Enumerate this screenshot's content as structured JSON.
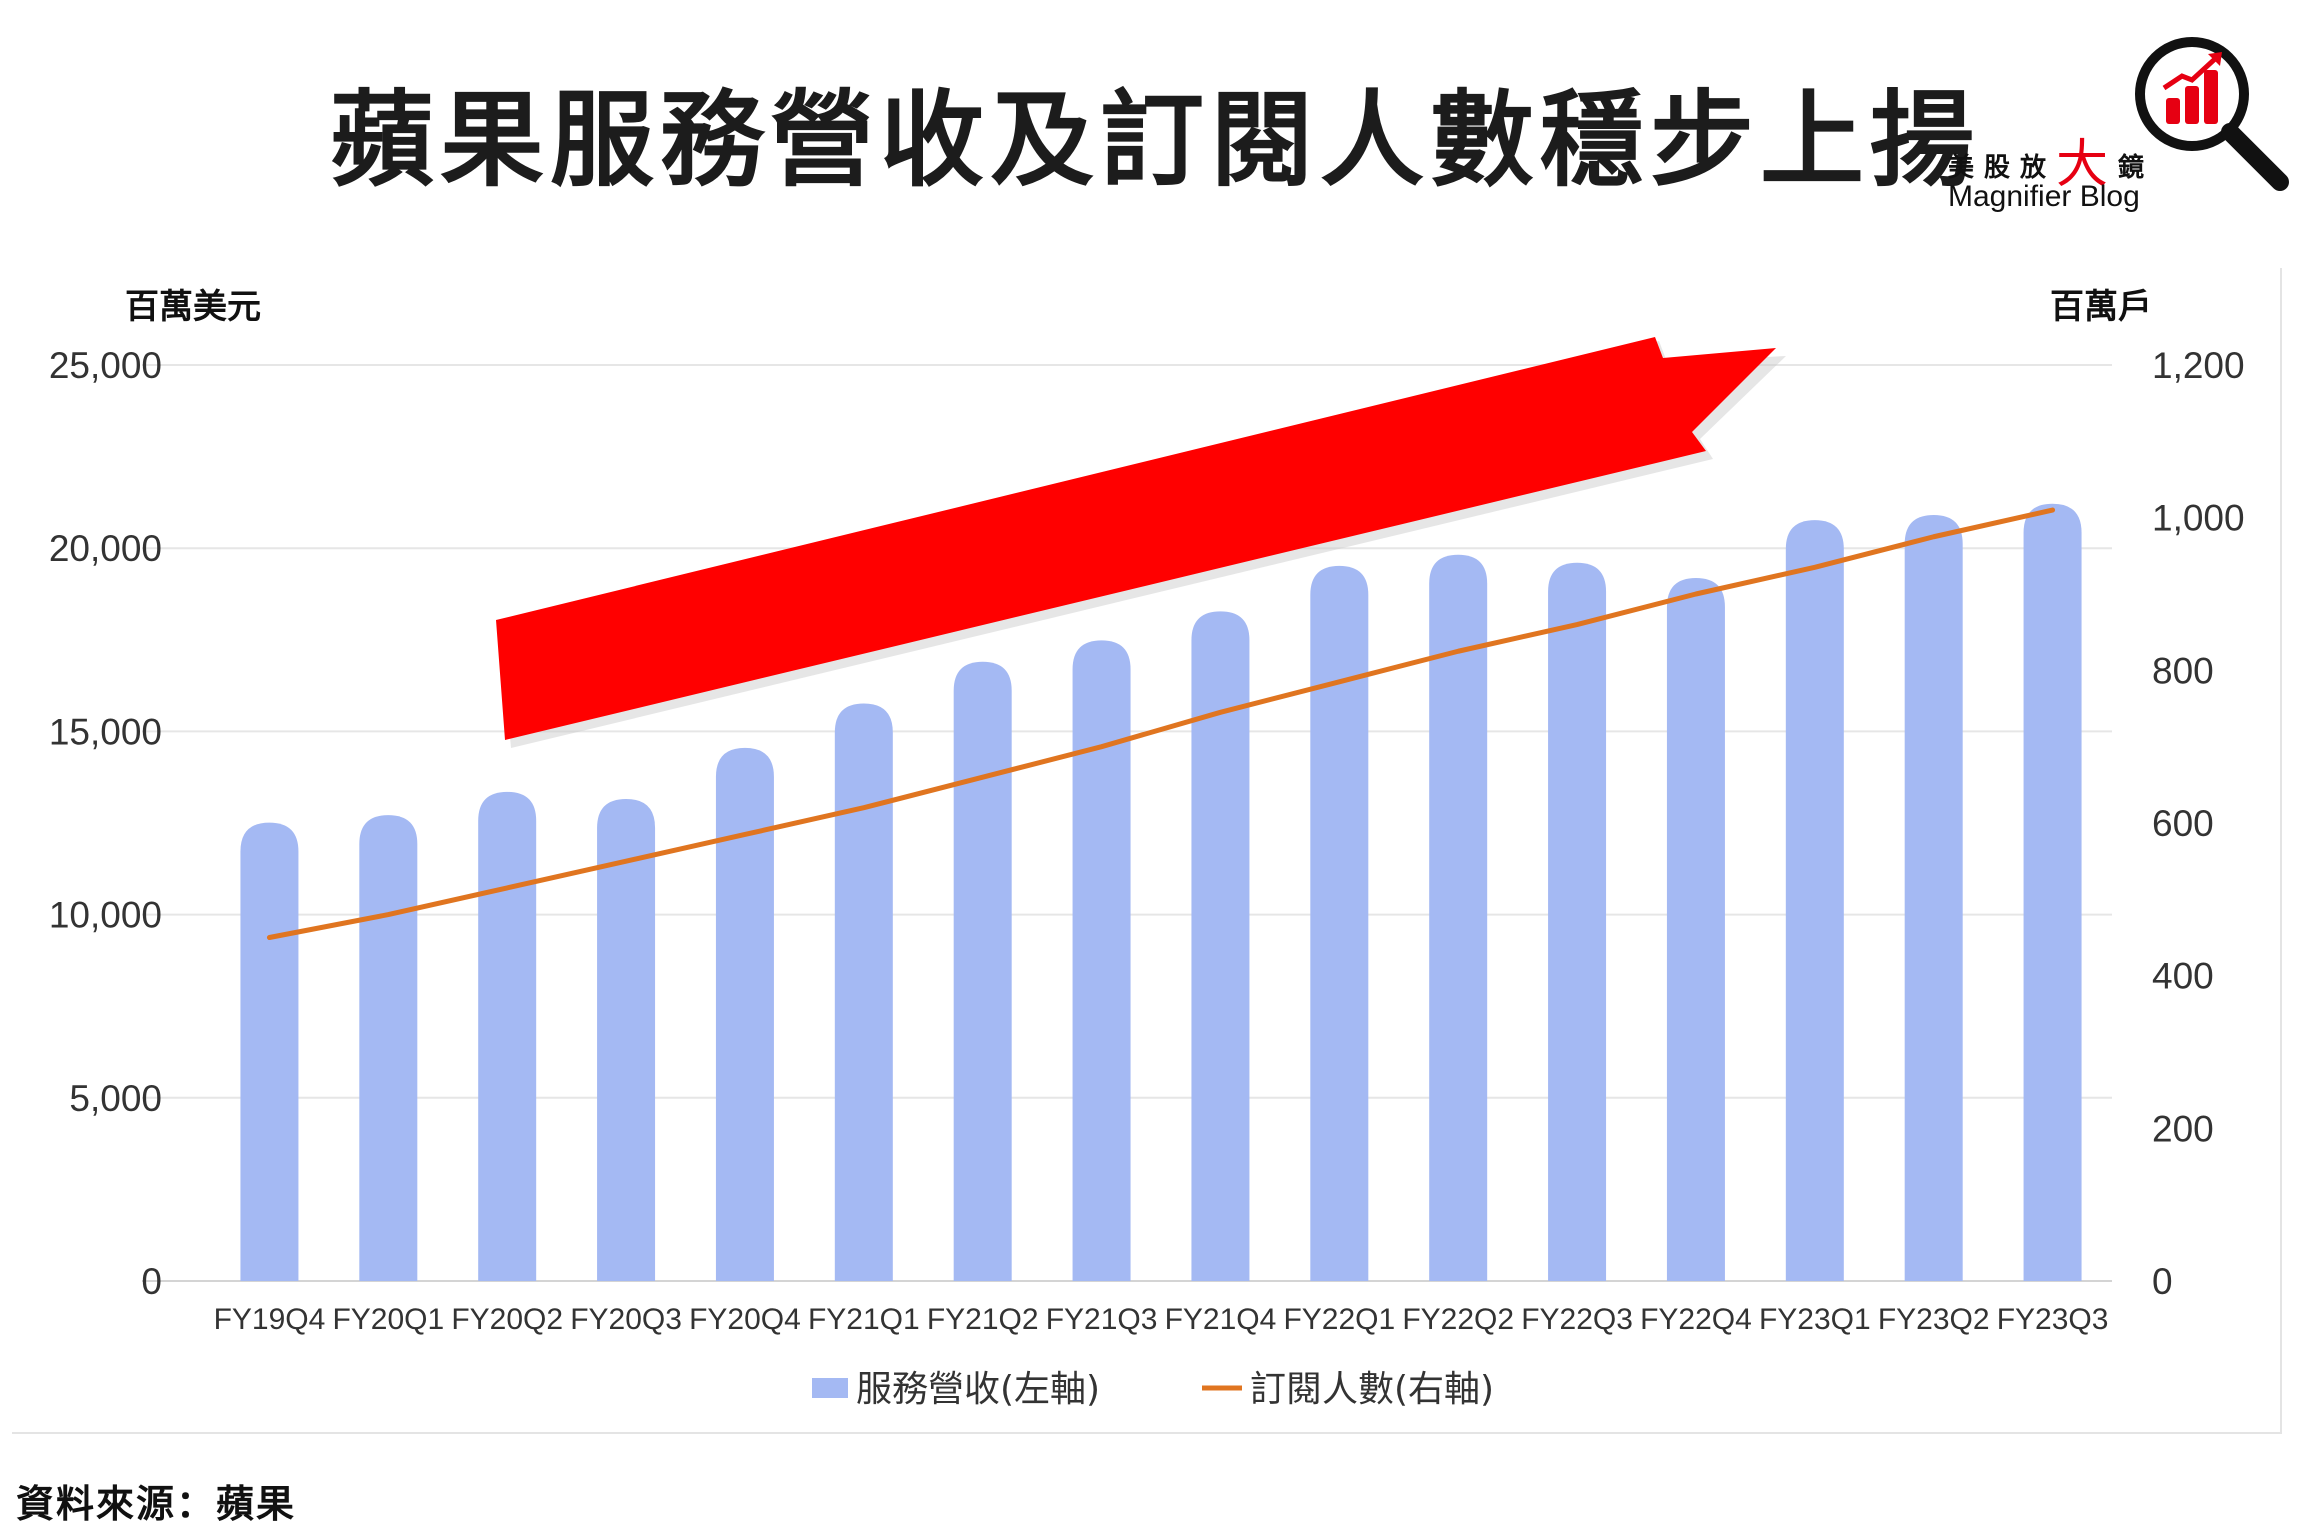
{
  "title": "蘋果服務營收及訂閱人數穩步上揚",
  "logo": {
    "cn_prefix": "美股放",
    "cn_big": "大",
    "cn_suffix": "鏡",
    "en": "Magnifier Blog",
    "icon": "magnifier-bar-chart-icon"
  },
  "source": "資料來源：蘋果",
  "colors": {
    "bar": "#a4b9f3",
    "line": "#e07520",
    "arrow": "#ff0000",
    "logo_red": "#e60012"
  },
  "chart_data": {
    "type": "bar",
    "categories": [
      "FY19Q4",
      "FY20Q1",
      "FY20Q2",
      "FY20Q3",
      "FY20Q4",
      "FY21Q1",
      "FY21Q2",
      "FY21Q3",
      "FY21Q4",
      "FY22Q1",
      "FY22Q2",
      "FY22Q3",
      "FY22Q4",
      "FY23Q1",
      "FY23Q2",
      "FY23Q3"
    ],
    "series": [
      {
        "name": "服務營收(左軸)",
        "type": "bar",
        "axis": "left",
        "values": [
          12511,
          12715,
          13348,
          13156,
          14549,
          15761,
          16901,
          17486,
          18277,
          19516,
          19821,
          19604,
          19188,
          20766,
          20907,
          21213
        ]
      },
      {
        "name": "訂閱人數(右軸)",
        "type": "line",
        "axis": "right",
        "values": [
          450,
          480,
          515,
          550,
          585,
          620,
          660,
          700,
          745,
          785,
          825,
          860,
          900,
          935,
          975,
          1010
        ]
      }
    ],
    "y_left": {
      "label": "百萬美元",
      "min": 0,
      "max": 25000,
      "ticks": [
        "0",
        "5,000",
        "10,000",
        "15,000",
        "20,000",
        "25,000"
      ]
    },
    "y_right": {
      "label": "百萬戶",
      "min": 0,
      "max": 1200,
      "ticks": [
        "0",
        "200",
        "400",
        "600",
        "800",
        "1,000",
        "1,200"
      ]
    },
    "grid": true,
    "legend": "bottom-center",
    "annotation": "red upward arrow"
  }
}
